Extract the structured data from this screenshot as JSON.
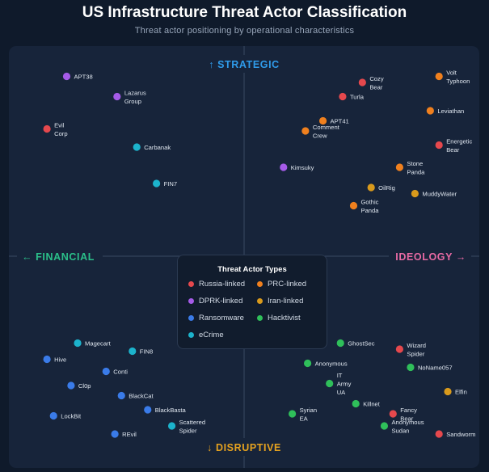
{
  "header": {
    "title": "US Infrastructure Threat Actor Classification",
    "subtitle": "Threat actor positioning by operational characteristics"
  },
  "colors": {
    "strategic": "#2f9bea",
    "disruptive": "#e6a21f",
    "financial": "#2bc08a",
    "ideology": "#e86aa4",
    "Russia-linked": "#e5484d",
    "PRC-linked": "#f0801e",
    "DPRK-linked": "#a55be8",
    "Iran-linked": "#d99a1c",
    "Ransomware": "#3a7be8",
    "Hacktivist": "#2fbf5a",
    "eCrime": "#1cb3cc"
  },
  "chart_data": {
    "type": "scatter",
    "title": "US Infrastructure Threat Actor Classification",
    "subtitle": "Threat actor positioning by operational characteristics",
    "axes": {
      "x": {
        "neg_label": "FINANCIAL",
        "pos_label": "IDEOLOGY",
        "range": [
          -10,
          10
        ]
      },
      "y": {
        "neg_label": "DISRUPTIVE",
        "pos_label": "STRATEGIC",
        "range": [
          -10,
          10
        ]
      },
      "arrows": {
        "up": "↑",
        "down": "↓",
        "left": "←",
        "right": "→"
      }
    },
    "legend": {
      "title": "Threat Actor Types",
      "items": [
        "Russia-linked",
        "PRC-linked",
        "DPRK-linked",
        "Iran-linked",
        "Ransomware",
        "Hacktivist",
        "eCrime"
      ]
    },
    "points": [
      {
        "name": "APT38",
        "lines": [
          "APT38"
        ],
        "type": "DPRK-linked",
        "x": -8.1,
        "y": 8.9
      },
      {
        "name": "Lazarus Group",
        "lines": [
          "Lazarus",
          "Group"
        ],
        "type": "DPRK-linked",
        "x": -5.8,
        "y": 7.9
      },
      {
        "name": "Evil Corp",
        "lines": [
          "Evil",
          "Corp"
        ],
        "type": "Russia-linked",
        "x": -9.0,
        "y": 6.3
      },
      {
        "name": "Carbanak",
        "lines": [
          "Carbanak"
        ],
        "type": "eCrime",
        "x": -4.9,
        "y": 5.4
      },
      {
        "name": "FIN7",
        "lines": [
          "FIN7"
        ],
        "type": "eCrime",
        "x": -4.0,
        "y": 3.6
      },
      {
        "name": "Cozy Bear",
        "lines": [
          "Cozy",
          "Bear"
        ],
        "type": "Russia-linked",
        "x": 5.4,
        "y": 8.6
      },
      {
        "name": "Volt Typhoon",
        "lines": [
          "Volt",
          "Typhoon"
        ],
        "type": "PRC-linked",
        "x": 8.9,
        "y": 8.9
      },
      {
        "name": "Turla",
        "lines": [
          "Turla"
        ],
        "type": "Russia-linked",
        "x": 4.5,
        "y": 7.9
      },
      {
        "name": "Leviathan",
        "lines": [
          "Leviathan"
        ],
        "type": "PRC-linked",
        "x": 8.5,
        "y": 7.2
      },
      {
        "name": "APT41",
        "lines": [
          "APT41"
        ],
        "type": "PRC-linked",
        "x": 3.6,
        "y": 6.7
      },
      {
        "name": "Comment Crew",
        "lines": [
          "Comment",
          "Crew"
        ],
        "type": "PRC-linked",
        "x": 2.8,
        "y": 6.2
      },
      {
        "name": "Energetic Bear",
        "lines": [
          "Energetic",
          "Bear"
        ],
        "type": "Russia-linked",
        "x": 8.9,
        "y": 5.5
      },
      {
        "name": "Kimsuky",
        "lines": [
          "Kimsuky"
        ],
        "type": "DPRK-linked",
        "x": 1.8,
        "y": 4.4
      },
      {
        "name": "Stone Panda",
        "lines": [
          "Stone",
          "Panda"
        ],
        "type": "PRC-linked",
        "x": 7.1,
        "y": 4.4
      },
      {
        "name": "OilRig",
        "lines": [
          "OilRig"
        ],
        "type": "Iran-linked",
        "x": 5.8,
        "y": 3.4
      },
      {
        "name": "MuddyWater",
        "lines": [
          "MuddyWater"
        ],
        "type": "Iran-linked",
        "x": 7.8,
        "y": 3.1
      },
      {
        "name": "Gothic Panda",
        "lines": [
          "Gothic",
          "Panda"
        ],
        "type": "PRC-linked",
        "x": 5.0,
        "y": 2.5
      },
      {
        "name": "Magecart",
        "lines": [
          "Magecart"
        ],
        "type": "eCrime",
        "x": -7.6,
        "y": -4.3
      },
      {
        "name": "FIN8",
        "lines": [
          "FIN8"
        ],
        "type": "eCrime",
        "x": -5.1,
        "y": -4.7
      },
      {
        "name": "Hive",
        "lines": [
          "Hive"
        ],
        "type": "Ransomware",
        "x": -9.0,
        "y": -5.1
      },
      {
        "name": "Conti",
        "lines": [
          "Conti"
        ],
        "type": "Ransomware",
        "x": -6.3,
        "y": -5.7
      },
      {
        "name": "Cl0p",
        "lines": [
          "Cl0p"
        ],
        "type": "Ransomware",
        "x": -7.9,
        "y": -6.4
      },
      {
        "name": "BlackCat",
        "lines": [
          "BlackCat"
        ],
        "type": "Ransomware",
        "x": -5.6,
        "y": -6.9
      },
      {
        "name": "BlackBasta",
        "lines": [
          "BlackBasta"
        ],
        "type": "Ransomware",
        "x": -4.4,
        "y": -7.6
      },
      {
        "name": "LockBit",
        "lines": [
          "LockBit"
        ],
        "type": "Ransomware",
        "x": -8.7,
        "y": -7.9
      },
      {
        "name": "Scattered Spider",
        "lines": [
          "Scattered",
          "Spider"
        ],
        "type": "eCrime",
        "x": -3.3,
        "y": -8.4
      },
      {
        "name": "REvil",
        "lines": [
          "REvil"
        ],
        "type": "Ransomware",
        "x": -5.9,
        "y": -8.8
      },
      {
        "name": "GhostSec",
        "lines": [
          "GhostSec"
        ],
        "type": "Hacktivist",
        "x": 4.4,
        "y": -4.3
      },
      {
        "name": "Wizard Spider",
        "lines": [
          "Wizard",
          "Spider"
        ],
        "type": "Russia-linked",
        "x": 7.1,
        "y": -4.6
      },
      {
        "name": "Anonymous",
        "lines": [
          "Anonymous"
        ],
        "type": "Hacktivist",
        "x": 2.9,
        "y": -5.3
      },
      {
        "name": "NoName057",
        "lines": [
          "NoName057"
        ],
        "type": "Hacktivist",
        "x": 7.6,
        "y": -5.5
      },
      {
        "name": "IT Army UA",
        "lines": [
          "IT",
          "Army",
          "UA"
        ],
        "type": "Hacktivist",
        "x": 3.9,
        "y": -6.3
      },
      {
        "name": "Elfin",
        "lines": [
          "Elfin"
        ],
        "type": "Iran-linked",
        "x": 9.3,
        "y": -6.7
      },
      {
        "name": "Killnet",
        "lines": [
          "Killnet"
        ],
        "type": "Hacktivist",
        "x": 5.1,
        "y": -7.3
      },
      {
        "name": "Fancy Bear",
        "lines": [
          "Fancy",
          "Bear"
        ],
        "type": "Russia-linked",
        "x": 6.8,
        "y": -7.8
      },
      {
        "name": "Syrian EA",
        "lines": [
          "Syrian",
          "EA"
        ],
        "type": "Hacktivist",
        "x": 2.2,
        "y": -7.8
      },
      {
        "name": "Anonymous Sudan",
        "lines": [
          "Anonymous",
          "Sudan"
        ],
        "type": "Hacktivist",
        "x": 6.4,
        "y": -8.4
      },
      {
        "name": "Sandworm",
        "lines": [
          "Sandworm"
        ],
        "type": "Russia-linked",
        "x": 8.9,
        "y": -8.8
      }
    ]
  }
}
